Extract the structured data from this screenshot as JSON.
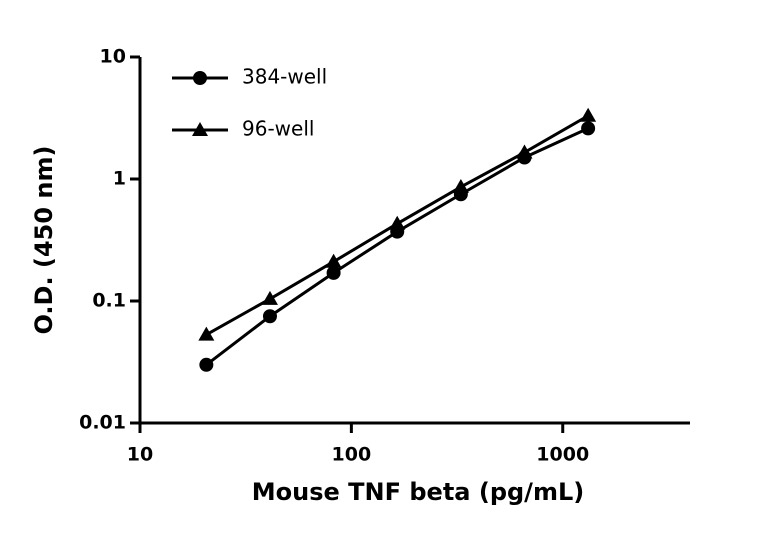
{
  "chart_data": {
    "type": "line",
    "x_label": "Mouse TNF beta (pg/mL)",
    "y_label": "O.D. (450 nm)",
    "x": [
      20.6,
      41.2,
      82.4,
      164.8,
      329.6,
      659.2,
      1318.4
    ],
    "series": [
      {
        "name": "384-well",
        "color": "#000000",
        "marker": "circle",
        "values": [
          0.03,
          0.075,
          0.17,
          0.37,
          0.75,
          1.5,
          2.6
        ]
      },
      {
        "name": "96-well",
        "color": "#000000",
        "marker": "triangle",
        "values": [
          0.053,
          0.104,
          0.21,
          0.43,
          0.86,
          1.65,
          3.3
        ]
      }
    ],
    "xscale": "log",
    "yscale": "log",
    "xlim": [
      10,
      4000
    ],
    "ylim": [
      0.01,
      10
    ],
    "xticks": [
      10,
      100,
      1000
    ],
    "yticks": [
      0.01,
      0.1,
      1,
      10
    ],
    "legend": "upper left",
    "grid": false
  }
}
